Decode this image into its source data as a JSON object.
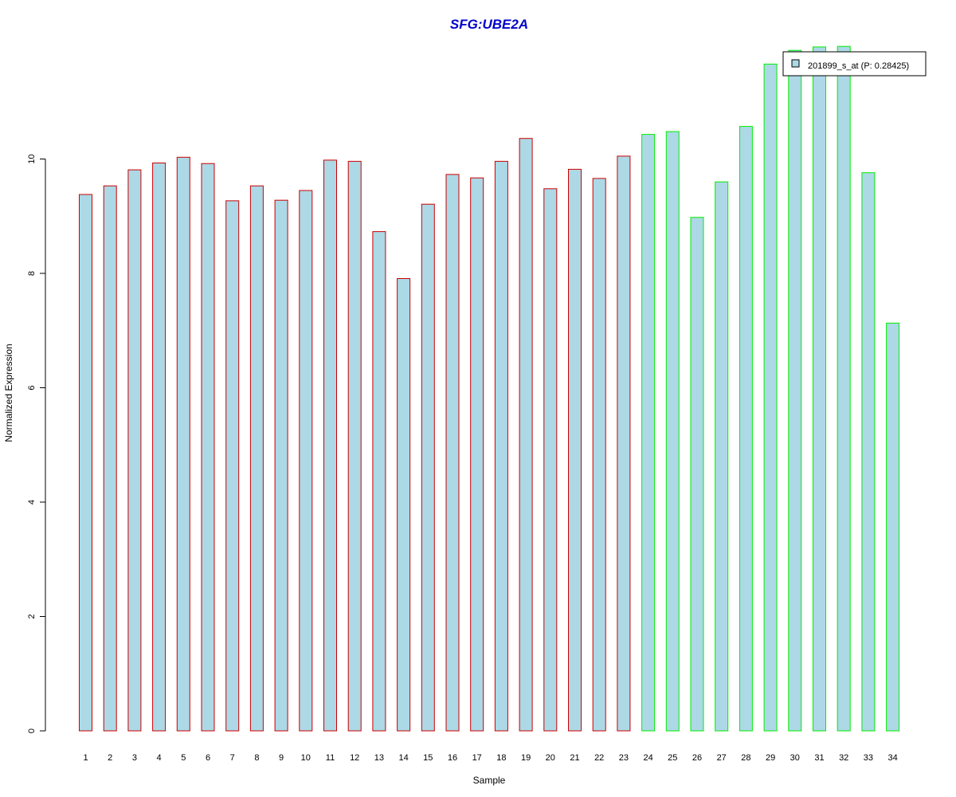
{
  "chart_data": {
    "type": "bar",
    "title": "SFG:UBE2A",
    "xlabel": "Sample",
    "ylabel": "Normalized Expression",
    "ylim": [
      0,
      12
    ],
    "yticks": [
      "0",
      "2",
      "4",
      "6",
      "8",
      "10"
    ],
    "categories": [
      "1",
      "2",
      "3",
      "4",
      "5",
      "6",
      "7",
      "8",
      "9",
      "10",
      "11",
      "12",
      "13",
      "14",
      "15",
      "16",
      "17",
      "18",
      "19",
      "20",
      "21",
      "22",
      "23",
      "24",
      "25",
      "26",
      "27",
      "28",
      "29",
      "30",
      "31",
      "32",
      "33",
      "34"
    ],
    "series": [
      {
        "name": "201899_s_at (P: 0.28425)",
        "values": [
          9.38,
          9.53,
          9.81,
          9.93,
          10.03,
          9.92,
          9.27,
          9.53,
          9.28,
          9.45,
          9.98,
          9.96,
          8.73,
          7.91,
          9.21,
          9.73,
          9.67,
          9.96,
          10.36,
          9.48,
          9.82,
          9.66,
          10.05,
          10.43,
          10.48,
          8.98,
          9.6,
          10.57,
          11.66,
          11.9,
          11.96,
          11.97,
          9.76,
          7.13
        ]
      }
    ],
    "groups": [
      {
        "count": 23,
        "border_color": "#cc0000"
      },
      {
        "count": 11,
        "border_color": "#00ee00"
      }
    ],
    "bar_fill": "#add8e6",
    "grid": false,
    "legend_position": "top-right"
  }
}
